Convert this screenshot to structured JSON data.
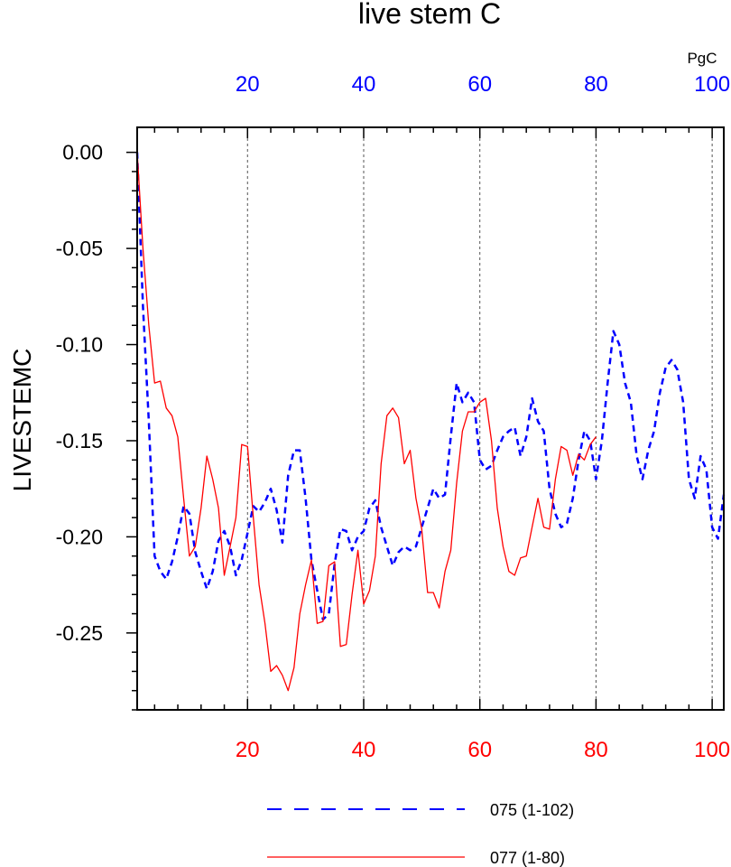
{
  "chart_data": {
    "type": "line",
    "title": "live stem C",
    "units_label": "PgC",
    "ylabel": "LIVESTEMC",
    "xlim": [
      1,
      102
    ],
    "ylim": [
      -0.29,
      0.013
    ],
    "yticks": [
      0.0,
      -0.05,
      -0.1,
      -0.15,
      -0.2,
      -0.25
    ],
    "ytick_labels": [
      "0.00",
      "-0.05",
      "-0.10",
      "-0.15",
      "-0.20",
      "-0.25"
    ],
    "top_axis": {
      "ticks": [
        20,
        40,
        60,
        80,
        100
      ],
      "labels": [
        "20",
        "40",
        "60",
        "80",
        "100"
      ],
      "color": "#0000ff"
    },
    "bottom_axis": {
      "ticks": [
        20,
        40,
        60,
        80,
        100
      ],
      "labels": [
        "20",
        "40",
        "60",
        "80",
        "100"
      ],
      "color": "#ff0000"
    },
    "grid_x": [
      20,
      40,
      60,
      80,
      100
    ],
    "legend_position": "bottom-center",
    "series": [
      {
        "name": "075 (1-102)",
        "color": "#0000ff",
        "dash": "dashed",
        "x_range": [
          1,
          102
        ],
        "values": [
          0.0,
          -0.08,
          -0.14,
          -0.21,
          -0.218,
          -0.222,
          -0.213,
          -0.2,
          -0.184,
          -0.188,
          -0.208,
          -0.218,
          -0.227,
          -0.218,
          -0.202,
          -0.197,
          -0.205,
          -0.22,
          -0.212,
          -0.198,
          -0.184,
          -0.187,
          -0.182,
          -0.175,
          -0.186,
          -0.203,
          -0.168,
          -0.155,
          -0.155,
          -0.18,
          -0.212,
          -0.228,
          -0.243,
          -0.24,
          -0.214,
          -0.196,
          -0.197,
          -0.207,
          -0.2,
          -0.197,
          -0.185,
          -0.181,
          -0.195,
          -0.205,
          -0.215,
          -0.208,
          -0.205,
          -0.207,
          -0.205,
          -0.195,
          -0.185,
          -0.175,
          -0.18,
          -0.178,
          -0.148,
          -0.12,
          -0.13,
          -0.125,
          -0.13,
          -0.16,
          -0.165,
          -0.163,
          -0.155,
          -0.148,
          -0.145,
          -0.143,
          -0.158,
          -0.148,
          -0.128,
          -0.14,
          -0.145,
          -0.175,
          -0.188,
          -0.195,
          -0.193,
          -0.18,
          -0.16,
          -0.145,
          -0.15,
          -0.17,
          -0.15,
          -0.12,
          -0.093,
          -0.1,
          -0.12,
          -0.13,
          -0.158,
          -0.17,
          -0.155,
          -0.145,
          -0.125,
          -0.112,
          -0.108,
          -0.113,
          -0.13,
          -0.17,
          -0.18,
          -0.158,
          -0.165,
          -0.195,
          -0.201,
          -0.178
        ]
      },
      {
        "name": "077 (1-80)",
        "color": "#ff0000",
        "dash": "solid",
        "x_range": [
          1,
          80
        ],
        "values": [
          0.0,
          -0.05,
          -0.09,
          -0.12,
          -0.119,
          -0.133,
          -0.137,
          -0.148,
          -0.18,
          -0.21,
          -0.205,
          -0.185,
          -0.158,
          -0.17,
          -0.185,
          -0.22,
          -0.205,
          -0.19,
          -0.152,
          -0.153,
          -0.19,
          -0.225,
          -0.245,
          -0.27,
          -0.267,
          -0.272,
          -0.28,
          -0.268,
          -0.24,
          -0.225,
          -0.212,
          -0.245,
          -0.244,
          -0.215,
          -0.213,
          -0.257,
          -0.256,
          -0.23,
          -0.207,
          -0.235,
          -0.228,
          -0.21,
          -0.162,
          -0.137,
          -0.133,
          -0.138,
          -0.162,
          -0.155,
          -0.18,
          -0.196,
          -0.229,
          -0.229,
          -0.237,
          -0.218,
          -0.207,
          -0.172,
          -0.145,
          -0.135,
          -0.135,
          -0.13,
          -0.128,
          -0.15,
          -0.185,
          -0.205,
          -0.218,
          -0.22,
          -0.211,
          -0.21,
          -0.195,
          -0.18,
          -0.195,
          -0.196,
          -0.17,
          -0.153,
          -0.155,
          -0.168,
          -0.157,
          -0.16,
          -0.152,
          -0.148
        ]
      }
    ]
  }
}
